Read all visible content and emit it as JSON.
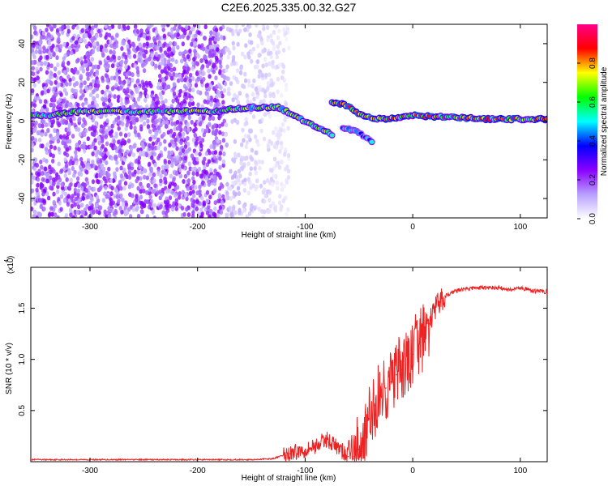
{
  "title": "C2E6.2025.335.00.32.G27",
  "chart_data": [
    {
      "type": "heatmap",
      "xlabel": "Height of straight line (km)",
      "ylabel": "Frequency (Hz)",
      "xlim": [
        -355,
        125
      ],
      "ylim": [
        -50,
        50
      ],
      "xticks": [
        -300,
        -200,
        -100,
        0,
        100
      ],
      "yticks": [
        -40,
        -20,
        0,
        20,
        40
      ],
      "colorbar": {
        "label": "Normalized spectral amplitude",
        "range": [
          0,
          1
        ],
        "ticks": [
          0.0,
          0.2,
          0.4,
          0.6,
          0.8
        ],
        "colormap": [
          "#ffffff",
          "#b8a0ff",
          "#8a00ff",
          "#0000ff",
          "#00ffff",
          "#00ff00",
          "#ffff00",
          "#ff0000",
          "#ff0088"
        ]
      },
      "features": [
        {
          "region": "noise",
          "x_range": [
            -355,
            -175
          ],
          "freq_range": [
            -50,
            50
          ],
          "amplitude": 0.2
        },
        {
          "region": "noise-sparse",
          "x_range": [
            -175,
            -115
          ],
          "freq_range": [
            -50,
            50
          ],
          "amplitude": 0.1
        },
        {
          "region": "ridge",
          "points": [
            [
              -355,
              3
            ],
            [
              -335,
              3
            ],
            [
              -310,
              5
            ],
            [
              -180,
              5
            ],
            [
              -175,
              6
            ],
            [
              -150,
              7
            ],
            [
              -125,
              7
            ],
            [
              -110,
              3
            ],
            [
              -90,
              -3
            ],
            [
              -75,
              -7
            ]
          ],
          "amplitude": 0.6
        },
        {
          "region": "ridge",
          "points": [
            [
              -75,
              10
            ],
            [
              -60,
              8
            ],
            [
              -45,
              2
            ],
            [
              -25,
              1
            ],
            [
              0,
              3
            ],
            [
              30,
              2
            ],
            [
              70,
              1
            ],
            [
              125,
              1
            ]
          ],
          "amplitude": 0.75
        },
        {
          "region": "ridge",
          "points": [
            [
              -65,
              -3
            ],
            [
              -50,
              -6
            ],
            [
              -38,
              -11
            ]
          ],
          "amplitude": 0.45
        }
      ]
    },
    {
      "type": "line",
      "xlabel": "Height of straight line (km)",
      "ylabel": "SNR (10 * v/v)",
      "yscale_label": "(x10",
      "yscale_exponent": "4",
      "xlim": [
        -355,
        125
      ],
      "ylim": [
        0,
        1.9
      ],
      "xticks": [
        -300,
        -200,
        -100,
        0,
        100
      ],
      "yticks": [
        0.5,
        1.0,
        1.5
      ],
      "color": "#ee2222",
      "series": [
        {
          "x": [
            -355,
            -300,
            -250,
            -200,
            -150,
            -130,
            -115,
            -100,
            -90,
            -80,
            -70,
            -60,
            -55,
            -50,
            -45,
            -40,
            -35,
            -30,
            -25,
            -20,
            -15,
            -10,
            -5,
            0,
            5,
            10,
            15,
            20,
            25,
            30,
            40,
            50,
            60,
            70,
            80,
            90,
            100,
            110,
            125
          ],
          "y": [
            0.02,
            0.02,
            0.02,
            0.02,
            0.02,
            0.03,
            0.08,
            0.12,
            0.16,
            0.22,
            0.14,
            0.05,
            0.05,
            0.12,
            0.22,
            0.42,
            0.55,
            0.68,
            0.72,
            0.78,
            0.85,
            0.9,
            0.95,
            1.05,
            1.18,
            1.2,
            1.35,
            1.48,
            1.56,
            1.62,
            1.67,
            1.69,
            1.7,
            1.7,
            1.7,
            1.68,
            1.7,
            1.67,
            1.66
          ]
        }
      ]
    }
  ]
}
